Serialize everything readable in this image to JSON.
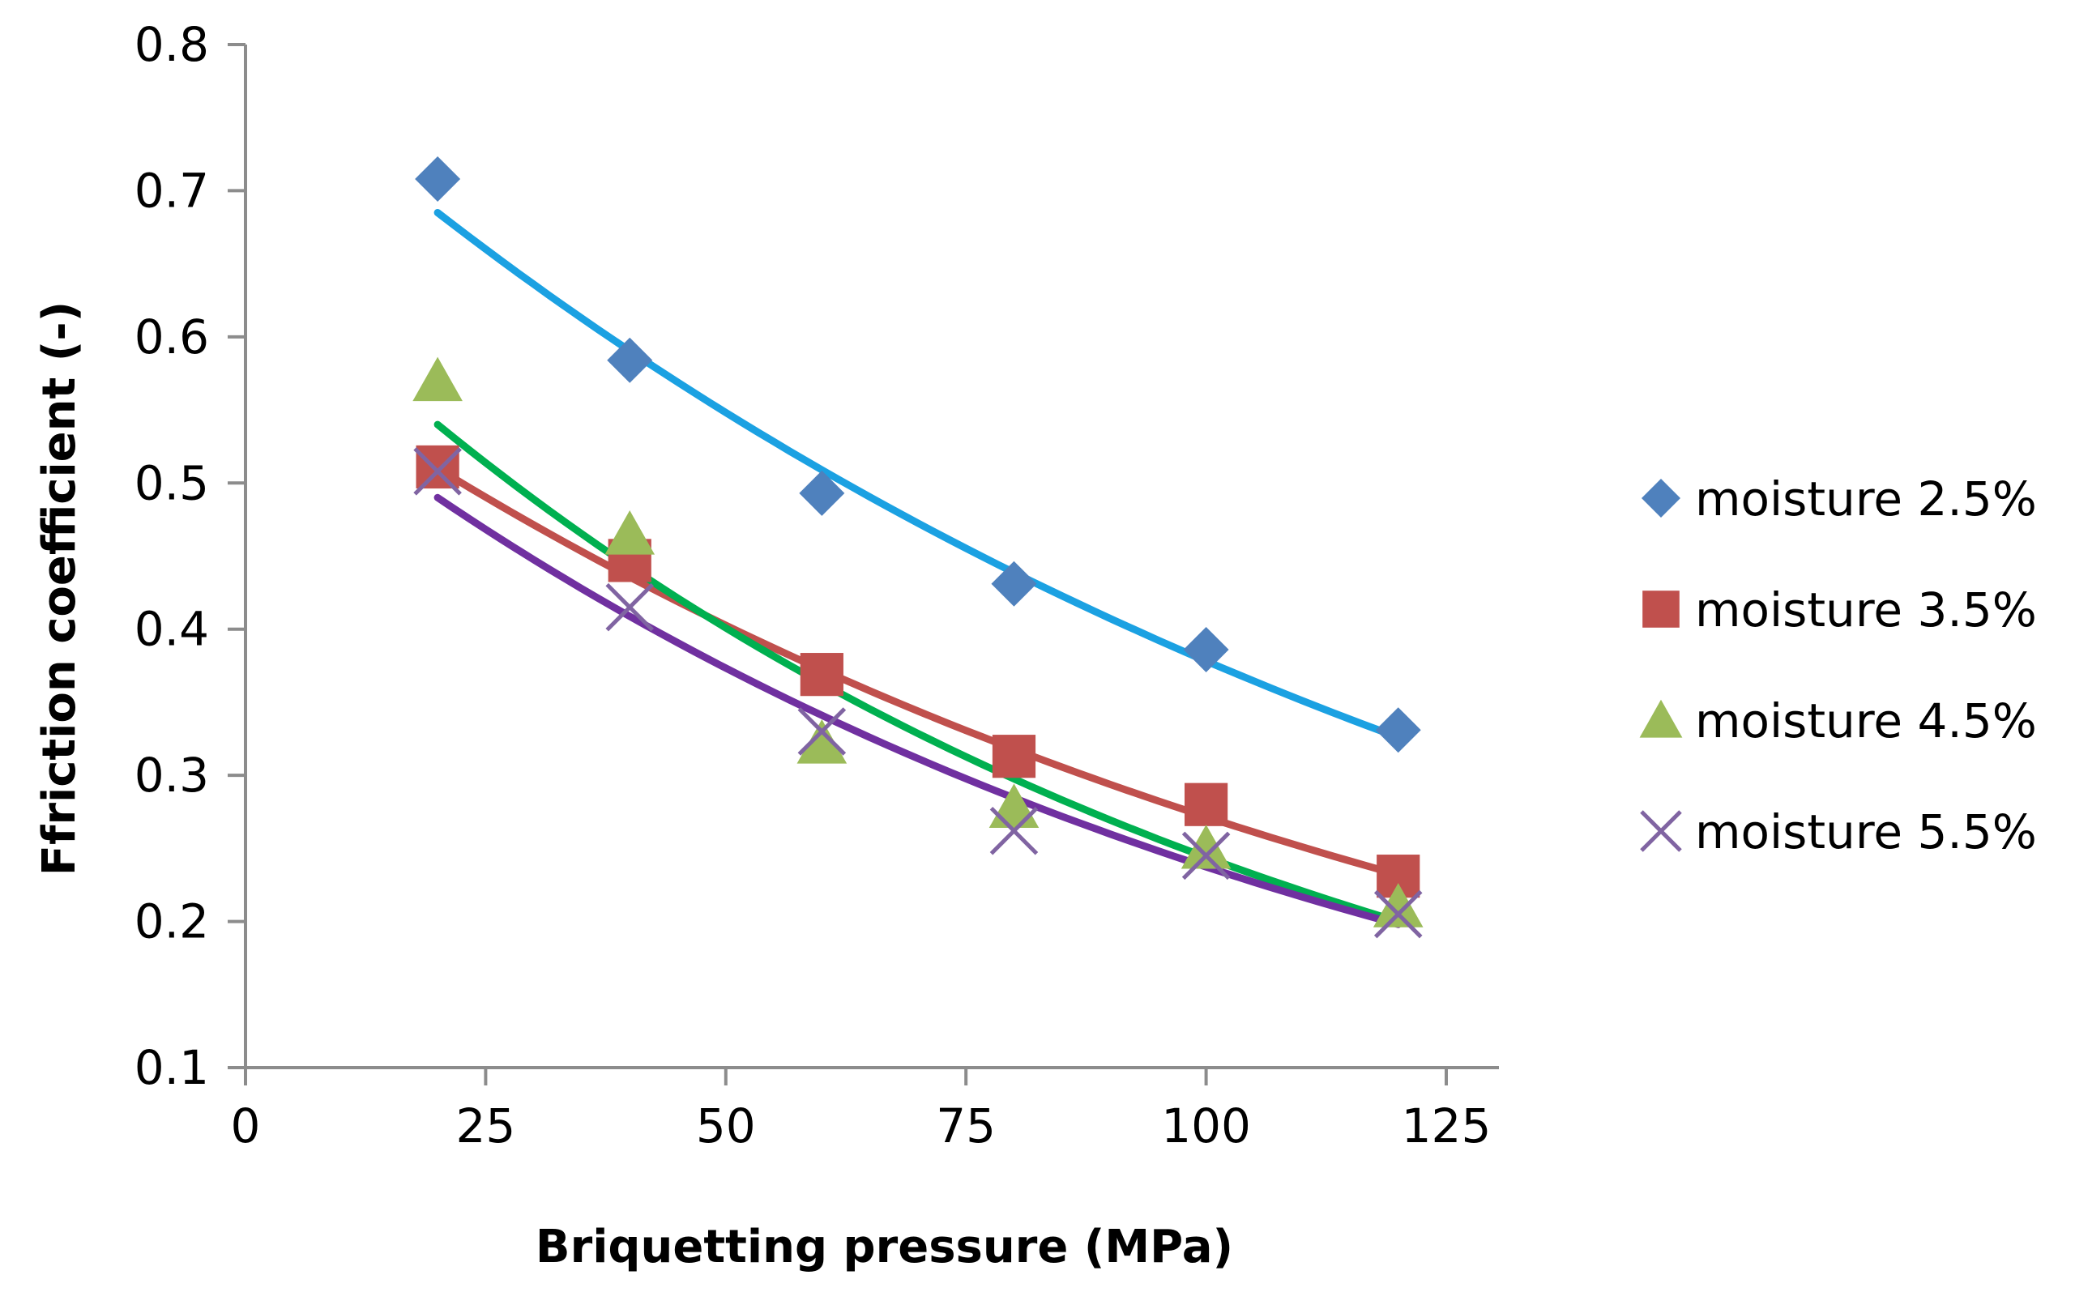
{
  "chart_data": {
    "type": "scatter",
    "title": "",
    "xlabel": "Briquetting pressure (MPa)",
    "ylabel": "Ffriction coefficient  (-)",
    "xlim": [
      0,
      125
    ],
    "ylim": [
      0.1,
      0.8
    ],
    "xticks": [
      0,
      25,
      50,
      75,
      100,
      125
    ],
    "yticks": [
      0.1,
      0.2,
      0.3,
      0.4,
      0.5,
      0.6,
      0.7,
      0.8
    ],
    "xtick_labels": [
      "0",
      "25",
      "50",
      "75",
      "100",
      "125"
    ],
    "ytick_labels": [
      "0.1",
      "0.2",
      "0.3",
      "0.4",
      "0.5",
      "0.6",
      "0.7",
      "0.8"
    ],
    "grid": false,
    "legend_position": "right",
    "series": [
      {
        "name": "moisture 2.5%",
        "marker": "diamond",
        "marker_color": "#4F81BD",
        "trend_color": "#1BA1E2",
        "x": [
          20,
          40,
          60,
          80,
          100,
          120
        ],
        "y": [
          0.708,
          0.584,
          0.493,
          0.431,
          0.386,
          0.331
        ],
        "trendline": {
          "type": "exponential",
          "x": [
            20,
            120
          ],
          "y": [
            0.685,
            0.326
          ]
        }
      },
      {
        "name": "moisture 3.5%",
        "marker": "square",
        "marker_color": "#C0504D",
        "trend_color": "#C0504D",
        "x": [
          20,
          40,
          60,
          80,
          100,
          120
        ],
        "y": [
          0.511,
          0.447,
          0.369,
          0.313,
          0.28,
          0.231
        ],
        "trendline": {
          "type": "exponential",
          "x": [
            20,
            120
          ],
          "y": [
            0.51,
            0.232
          ]
        }
      },
      {
        "name": "moisture 4.5%",
        "marker": "triangle",
        "marker_color": "#9BBB59",
        "trend_color": "#00B050",
        "x": [
          20,
          40,
          60,
          80,
          100,
          120
        ],
        "y": [
          0.57,
          0.465,
          0.322,
          0.278,
          0.25,
          0.21
        ],
        "trendline": {
          "type": "exponential",
          "x": [
            20,
            120
          ],
          "y": [
            0.54,
            0.2
          ]
        }
      },
      {
        "name": "moisture 5.5%",
        "marker": "x",
        "marker_color": "#8064A2",
        "trend_color": "#7030A0",
        "x": [
          20,
          40,
          60,
          80,
          100,
          120
        ],
        "y": [
          0.508,
          0.415,
          0.33,
          0.262,
          0.245,
          0.205
        ],
        "trendline": {
          "type": "exponential",
          "x": [
            20,
            120
          ],
          "y": [
            0.49,
            0.198
          ]
        }
      }
    ]
  }
}
